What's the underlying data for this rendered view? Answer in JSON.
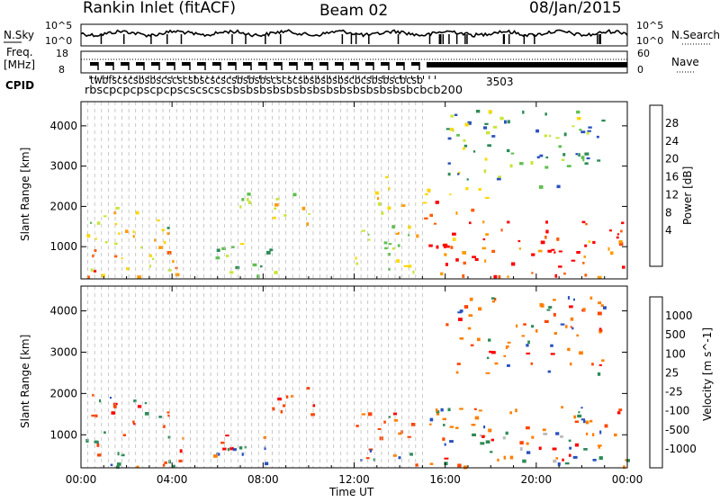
{
  "header": {
    "station": "Rankin Inlet (fitACF)",
    "beam": "Beam 02",
    "date": "08/Jan/2015"
  },
  "top_panels": {
    "nsky_label": "N.Sky",
    "nsky_ticks": [
      "10^5",
      "10^0"
    ],
    "nsearch_label": "N.Search",
    "freq_label_1": "Freq.",
    "freq_label_2": "[MHz]",
    "freq_ticks": [
      "18",
      "8"
    ],
    "nave_ticks": [
      "60",
      "0"
    ],
    "nave_label": "Nave",
    "cpid_label": "CPID",
    "cpid_text_a": "twbfscscsbsbscscscsbscscscsbsbsbscscscsbsbsbsbscbcsbsbscbcsb",
    "cpid_text_b": "rbscpcpcpscpcpscscscscsbsbsbsbsbsbsbsbsbsbsbsbsbsbcbcb200",
    "cpid_text_c": "3503"
  },
  "chart_data": [
    {
      "type": "heatmap",
      "name": "power",
      "ylabel": "Slant Range [km]",
      "yticks": [
        1000,
        2000,
        3000,
        4000
      ],
      "ylim": [
        200,
        4600
      ],
      "xlim": [
        0,
        24
      ],
      "xticks": [
        "00:00",
        "04:00",
        "08:00",
        "12:00",
        "16:00",
        "20:00",
        "00:00"
      ],
      "colorbar": {
        "label": "Power [dB]",
        "ticks": [
          "28",
          "24",
          "20",
          "16",
          "12",
          "8",
          "4"
        ],
        "colors": [
          "#1a1aff",
          "#2a52be",
          "#2e8b57",
          "#5fbf4f",
          "#c8e63c",
          "#ffd700",
          "#ff9a00",
          "#ff5a00",
          "#ff0000"
        ]
      },
      "regions": [
        {
          "x0": 0.0,
          "x1": 4.6,
          "y0": 250,
          "y1": 1400,
          "v": 22
        },
        {
          "x0": 0.3,
          "x1": 4.0,
          "y0": 1400,
          "y1": 2000,
          "v": 16
        },
        {
          "x0": 5.5,
          "x1": 8.6,
          "y0": 300,
          "y1": 1100,
          "v": 14
        },
        {
          "x0": 6.2,
          "x1": 7.4,
          "y0": 1700,
          "y1": 2400,
          "v": 16
        },
        {
          "x0": 8.3,
          "x1": 10.2,
          "y0": 1500,
          "y1": 2400,
          "v": 18
        },
        {
          "x0": 12.0,
          "x1": 14.8,
          "y0": 300,
          "y1": 1700,
          "v": 18
        },
        {
          "x0": 12.8,
          "x1": 14.2,
          "y0": 1800,
          "y1": 2800,
          "v": 22
        },
        {
          "x0": 15.2,
          "x1": 24.0,
          "y0": 250,
          "y1": 1700,
          "v": 28
        },
        {
          "x0": 15.0,
          "x1": 18.0,
          "y0": 1700,
          "y1": 2500,
          "v": 24
        },
        {
          "x0": 16.0,
          "x1": 23.0,
          "y0": 2500,
          "y1": 4400,
          "v": 12
        }
      ]
    },
    {
      "type": "heatmap",
      "name": "velocity",
      "ylabel": "Slant Range [km]",
      "yticks": [
        1000,
        2000,
        3000,
        4000
      ],
      "ylim": [
        200,
        4600
      ],
      "xlim": [
        0,
        24
      ],
      "xlabel": "Time UT",
      "xticks": [
        "00:00",
        "04:00",
        "08:00",
        "12:00",
        "16:00",
        "20:00",
        "00:00"
      ],
      "colorbar": {
        "label": "Velocity [m s^-1]",
        "ticks": [
          "1000",
          "500",
          "100",
          "25",
          "-25",
          "-100",
          "-500",
          "-1000"
        ],
        "colors": [
          "#1a1aff",
          "#2a52be",
          "#2e8b57",
          "#5fbf4f",
          "#bbbbbb",
          "#ffa500",
          "#ff7f00",
          "#ff4500",
          "#ff0000"
        ]
      },
      "regions": [
        {
          "x0": 0.0,
          "x1": 4.6,
          "y0": 250,
          "y1": 1000,
          "v": 100
        },
        {
          "x0": 0.3,
          "x1": 4.0,
          "y0": 1000,
          "y1": 2000,
          "v": -500
        },
        {
          "x0": 5.5,
          "x1": 8.6,
          "y0": 300,
          "y1": 1100,
          "v": 500
        },
        {
          "x0": 8.3,
          "x1": 10.2,
          "y0": 1500,
          "y1": 2400,
          "v": -500
        },
        {
          "x0": 12.0,
          "x1": 14.8,
          "y0": 300,
          "y1": 1700,
          "v": -500
        },
        {
          "x0": 15.2,
          "x1": 24.0,
          "y0": 250,
          "y1": 1700,
          "v": -100
        },
        {
          "x0": 17.5,
          "x1": 21.5,
          "y0": 300,
          "y1": 1100,
          "v": 0
        },
        {
          "x0": 16.0,
          "x1": 23.0,
          "y0": 2500,
          "y1": 4400,
          "v": -100
        }
      ]
    }
  ]
}
